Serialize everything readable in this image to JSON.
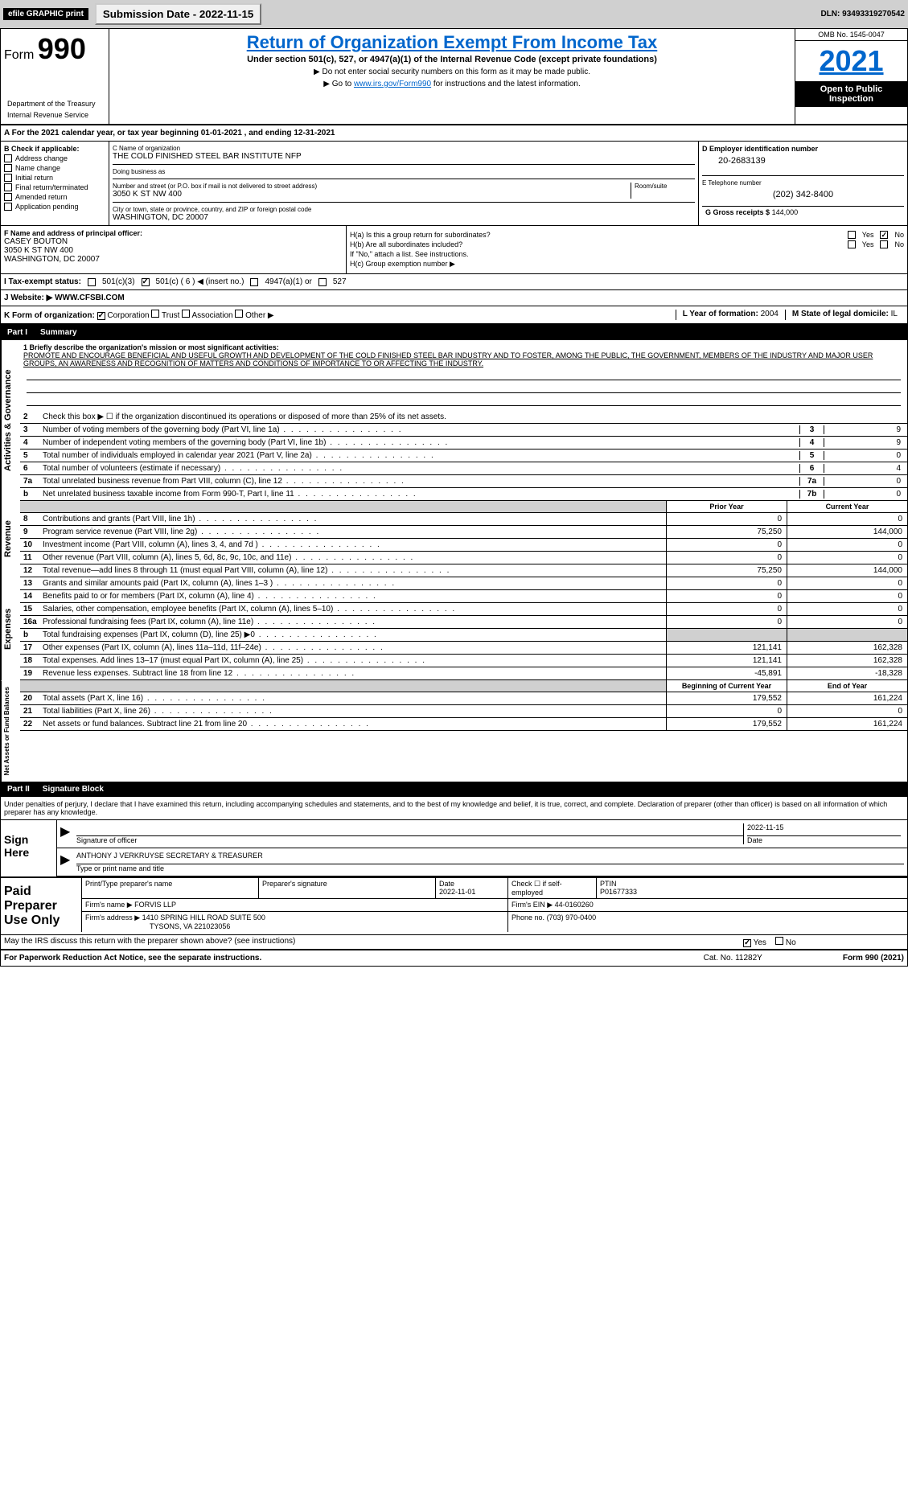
{
  "header": {
    "efile": "efile GRAPHIC print",
    "submission_btn": "Submission Date - 2022-11-15",
    "dln": "DLN: 93493319270542"
  },
  "form": {
    "form_label": "Form",
    "form_num": "990",
    "title": "Return of Organization Exempt From Income Tax",
    "subtitle": "Under section 501(c), 527, or 4947(a)(1) of the Internal Revenue Code (except private foundations)",
    "note1": "▶ Do not enter social security numbers on this form as it may be made public.",
    "note2_pre": "▶ Go to ",
    "note2_link": "www.irs.gov/Form990",
    "note2_post": " for instructions and the latest information.",
    "omb": "OMB No. 1545-0047",
    "year": "2021",
    "inspection": "Open to Public Inspection",
    "dept": "Department of the Treasury",
    "irs": "Internal Revenue Service"
  },
  "section_a": {
    "text": "A For the 2021 calendar year, or tax year beginning 01-01-2021     , and ending 12-31-2021"
  },
  "section_b": {
    "header": "B Check if applicable:",
    "items": [
      "Address change",
      "Name change",
      "Initial return",
      "Final return/terminated",
      "Amended return",
      "Application pending"
    ]
  },
  "section_c": {
    "name_label": "C Name of organization",
    "name": "THE COLD FINISHED STEEL BAR INSTITUTE NFP",
    "dba_label": "Doing business as",
    "dba": "",
    "addr_label": "Number and street (or P.O. box if mail is not delivered to street address)",
    "room_label": "Room/suite",
    "addr": "3050 K ST NW 400",
    "city_label": "City or town, state or province, country, and ZIP or foreign postal code",
    "city": "WASHINGTON, DC  20007"
  },
  "section_d": {
    "label": "D Employer identification number",
    "ein": "20-2683139"
  },
  "section_e": {
    "label": "E Telephone number",
    "phone": "(202) 342-8400"
  },
  "section_g": {
    "label": "G Gross receipts $",
    "amount": "144,000"
  },
  "section_f": {
    "label": "F  Name and address of principal officer:",
    "name": "CASEY BOUTON",
    "addr1": "3050 K ST NW 400",
    "addr2": "WASHINGTON, DC  20007"
  },
  "section_h": {
    "ha_label": "H(a)  Is this a group return for subordinates?",
    "hb_label": "H(b)  Are all subordinates included?",
    "hb_note": "If \"No,\" attach a list. See instructions.",
    "hc_label": "H(c)  Group exemption number ▶",
    "yes": "Yes",
    "no": "No"
  },
  "tax_exempt": {
    "label": "I    Tax-exempt status:",
    "opt1": "501(c)(3)",
    "opt2": "501(c) ( 6 ) ◀ (insert no.)",
    "opt3": "4947(a)(1) or",
    "opt4": "527"
  },
  "website": {
    "label": "J    Website: ▶",
    "value": " WWW.CFSBI.COM"
  },
  "section_k": {
    "label": "K Form of organization:",
    "opts": [
      "Corporation",
      "Trust",
      "Association",
      "Other ▶"
    ]
  },
  "section_l": {
    "label": "L Year of formation:",
    "value": "2004"
  },
  "section_m": {
    "label": "M State of legal domicile:",
    "value": "IL"
  },
  "part1": {
    "header": "Part I",
    "title": "Summary",
    "q1_label": "1 Briefly describe the organization's mission or most significant activities:",
    "mission": "PROMOTE AND ENCOURAGE BENEFICIAL AND USEFUL GROWTH AND DEVELOPMENT OF THE COLD FINISHED STEEL BAR INDUSTRY AND TO FOSTER, AMONG THE PUBLIC, THE GOVERNMENT, MEMBERS OF THE INDUSTRY AND MAJOR USER GROUPS, AN AWARENESS AND RECOGNITION OF MATTERS AND CONDITIONS OF IMPORTANCE TO OR AFFECTING THE INDUSTRY.",
    "q2": "Check this box ▶ ☐  if the organization discontinued its operations or disposed of more than 25% of its net assets.",
    "rows": [
      {
        "num": "3",
        "text": "Number of voting members of the governing body (Part VI, line 1a)",
        "box": "3",
        "val": "9"
      },
      {
        "num": "4",
        "text": "Number of independent voting members of the governing body (Part VI, line 1b)",
        "box": "4",
        "val": "9"
      },
      {
        "num": "5",
        "text": "Total number of individuals employed in calendar year 2021 (Part V, line 2a)",
        "box": "5",
        "val": "0"
      },
      {
        "num": "6",
        "text": "Total number of volunteers (estimate if necessary)",
        "box": "6",
        "val": "4"
      },
      {
        "num": "7a",
        "text": "Total unrelated business revenue from Part VIII, column (C), line 12",
        "box": "7a",
        "val": "0"
      },
      {
        "num": "b",
        "text": "Net unrelated business taxable income from Form 990-T, Part I, line 11",
        "box": "7b",
        "val": "0"
      }
    ],
    "prior_label": "Prior Year",
    "current_label": "Current Year",
    "revenue_rows": [
      {
        "num": "8",
        "text": "Contributions and grants (Part VIII, line 1h)",
        "prior": "0",
        "current": "0"
      },
      {
        "num": "9",
        "text": "Program service revenue (Part VIII, line 2g)",
        "prior": "75,250",
        "current": "144,000"
      },
      {
        "num": "10",
        "text": "Investment income (Part VIII, column (A), lines 3, 4, and 7d )",
        "prior": "0",
        "current": "0"
      },
      {
        "num": "11",
        "text": "Other revenue (Part VIII, column (A), lines 5, 6d, 8c, 9c, 10c, and 11e)",
        "prior": "0",
        "current": "0"
      },
      {
        "num": "12",
        "text": "Total revenue—add lines 8 through 11 (must equal Part VIII, column (A), line 12)",
        "prior": "75,250",
        "current": "144,000"
      }
    ],
    "expense_rows": [
      {
        "num": "13",
        "text": "Grants and similar amounts paid (Part IX, column (A), lines 1–3 )",
        "prior": "0",
        "current": "0"
      },
      {
        "num": "14",
        "text": "Benefits paid to or for members (Part IX, column (A), line 4)",
        "prior": "0",
        "current": "0"
      },
      {
        "num": "15",
        "text": "Salaries, other compensation, employee benefits (Part IX, column (A), lines 5–10)",
        "prior": "0",
        "current": "0"
      },
      {
        "num": "16a",
        "text": "Professional fundraising fees (Part IX, column (A), line 11e)",
        "prior": "0",
        "current": "0"
      },
      {
        "num": "b",
        "text": "Total fundraising expenses (Part IX, column (D), line 25) ▶0",
        "prior": "",
        "current": "",
        "shaded": true
      },
      {
        "num": "17",
        "text": "Other expenses (Part IX, column (A), lines 11a–11d, 11f–24e)",
        "prior": "121,141",
        "current": "162,328"
      },
      {
        "num": "18",
        "text": "Total expenses. Add lines 13–17 (must equal Part IX, column (A), line 25)",
        "prior": "121,141",
        "current": "162,328"
      },
      {
        "num": "19",
        "text": "Revenue less expenses. Subtract line 18 from line 12",
        "prior": "-45,891",
        "current": "-18,328"
      }
    ],
    "begin_label": "Beginning of Current Year",
    "end_label": "End of Year",
    "net_rows": [
      {
        "num": "20",
        "text": "Total assets (Part X, line 16)",
        "prior": "179,552",
        "current": "161,224"
      },
      {
        "num": "21",
        "text": "Total liabilities (Part X, line 26)",
        "prior": "0",
        "current": "0"
      },
      {
        "num": "22",
        "text": "Net assets or fund balances. Subtract line 21 from line 20",
        "prior": "179,552",
        "current": "161,224"
      }
    ]
  },
  "side_labels": {
    "activities": "Activities & Governance",
    "revenue": "Revenue",
    "expenses": "Expenses",
    "net": "Net Assets or Fund Balances"
  },
  "part2": {
    "header": "Part II",
    "title": "Signature Block",
    "penalty": "Under penalties of perjury, I declare that I have examined this return, including accompanying schedules and statements, and to the best of my knowledge and belief, it is true, correct, and complete. Declaration of preparer (other than officer) is based on all information of which preparer has any knowledge."
  },
  "sign": {
    "label": "Sign Here",
    "sig_label": "Signature of officer",
    "date": "2022-11-15",
    "date_label": "Date",
    "name": "ANTHONY J VERKRUYSE  SECRETARY & TREASURER",
    "name_label": "Type or print name and title"
  },
  "paid": {
    "label": "Paid Preparer Use Only",
    "print_label": "Print/Type preparer's name",
    "sig_label": "Preparer's signature",
    "date_label": "Date",
    "date": "2022-11-01",
    "check_label": "Check ☐ if self-employed",
    "ptin_label": "PTIN",
    "ptin": "P01677333",
    "firm_name_label": "Firm's name     ▶",
    "firm_name": "FORVIS LLP",
    "firm_ein_label": "Firm's EIN ▶",
    "firm_ein": "44-0160260",
    "firm_addr_label": "Firm's address ▶",
    "firm_addr1": "1410 SPRING HILL ROAD SUITE 500",
    "firm_addr2": "TYSONS, VA  221023056",
    "phone_label": "Phone no.",
    "phone": "(703) 970-0400"
  },
  "discuss": {
    "text": "May the IRS discuss this return with the preparer shown above? (see instructions)",
    "yes": "Yes",
    "no": "No"
  },
  "footer": {
    "left": "For Paperwork Reduction Act Notice, see the separate instructions.",
    "center": "Cat. No. 11282Y",
    "right": "Form 990 (2021)"
  }
}
